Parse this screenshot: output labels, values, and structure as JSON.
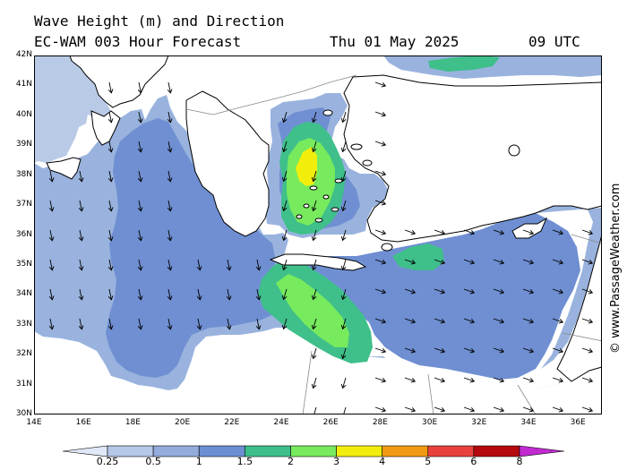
{
  "header": {
    "title_line1": "Wave Height (m) and Direction",
    "title_line2": "EC-WAM 003 Hour Forecast",
    "date": "Thu 01 May 2025",
    "time": "09 UTC"
  },
  "credit": "© www.PassageWeather.com",
  "map": {
    "lat_ticks": [
      "42N",
      "41N",
      "40N",
      "39N",
      "38N",
      "37N",
      "36N",
      "35N",
      "34N",
      "33N",
      "32N",
      "31N",
      "30N"
    ],
    "lon_ticks": [
      "14E",
      "16E",
      "18E",
      "20E",
      "22E",
      "24E",
      "26E",
      "28E",
      "30E",
      "32E",
      "34E",
      "36E"
    ],
    "lat_range": [
      30,
      42
    ],
    "lon_range": [
      14,
      37
    ],
    "colors": {
      "land": "#ffffff",
      "lt_0_25": "#e8eef8",
      "0_25_0_5": "#b9cae6",
      "0_5_1": "#99b3de",
      "1_1_5": "#6f8fd2",
      "1_5_2": "#3fbf8a",
      "2_3": "#77ea5e",
      "3_4": "#f2ee0c",
      "coast": "#000000",
      "borders": "#888888"
    }
  },
  "legend": {
    "labels": [
      "0.25",
      "0.5",
      "1",
      "1.5",
      "2",
      "3",
      "4",
      "5",
      "6",
      "8"
    ],
    "colors": [
      "#dfe8f6",
      "#b5c8e8",
      "#93acdb",
      "#6c8fd4",
      "#3cbf8b",
      "#77ea5e",
      "#f2ee0c",
      "#f29a12",
      "#e8413d",
      "#b5080e",
      "#c02ad0"
    ]
  }
}
